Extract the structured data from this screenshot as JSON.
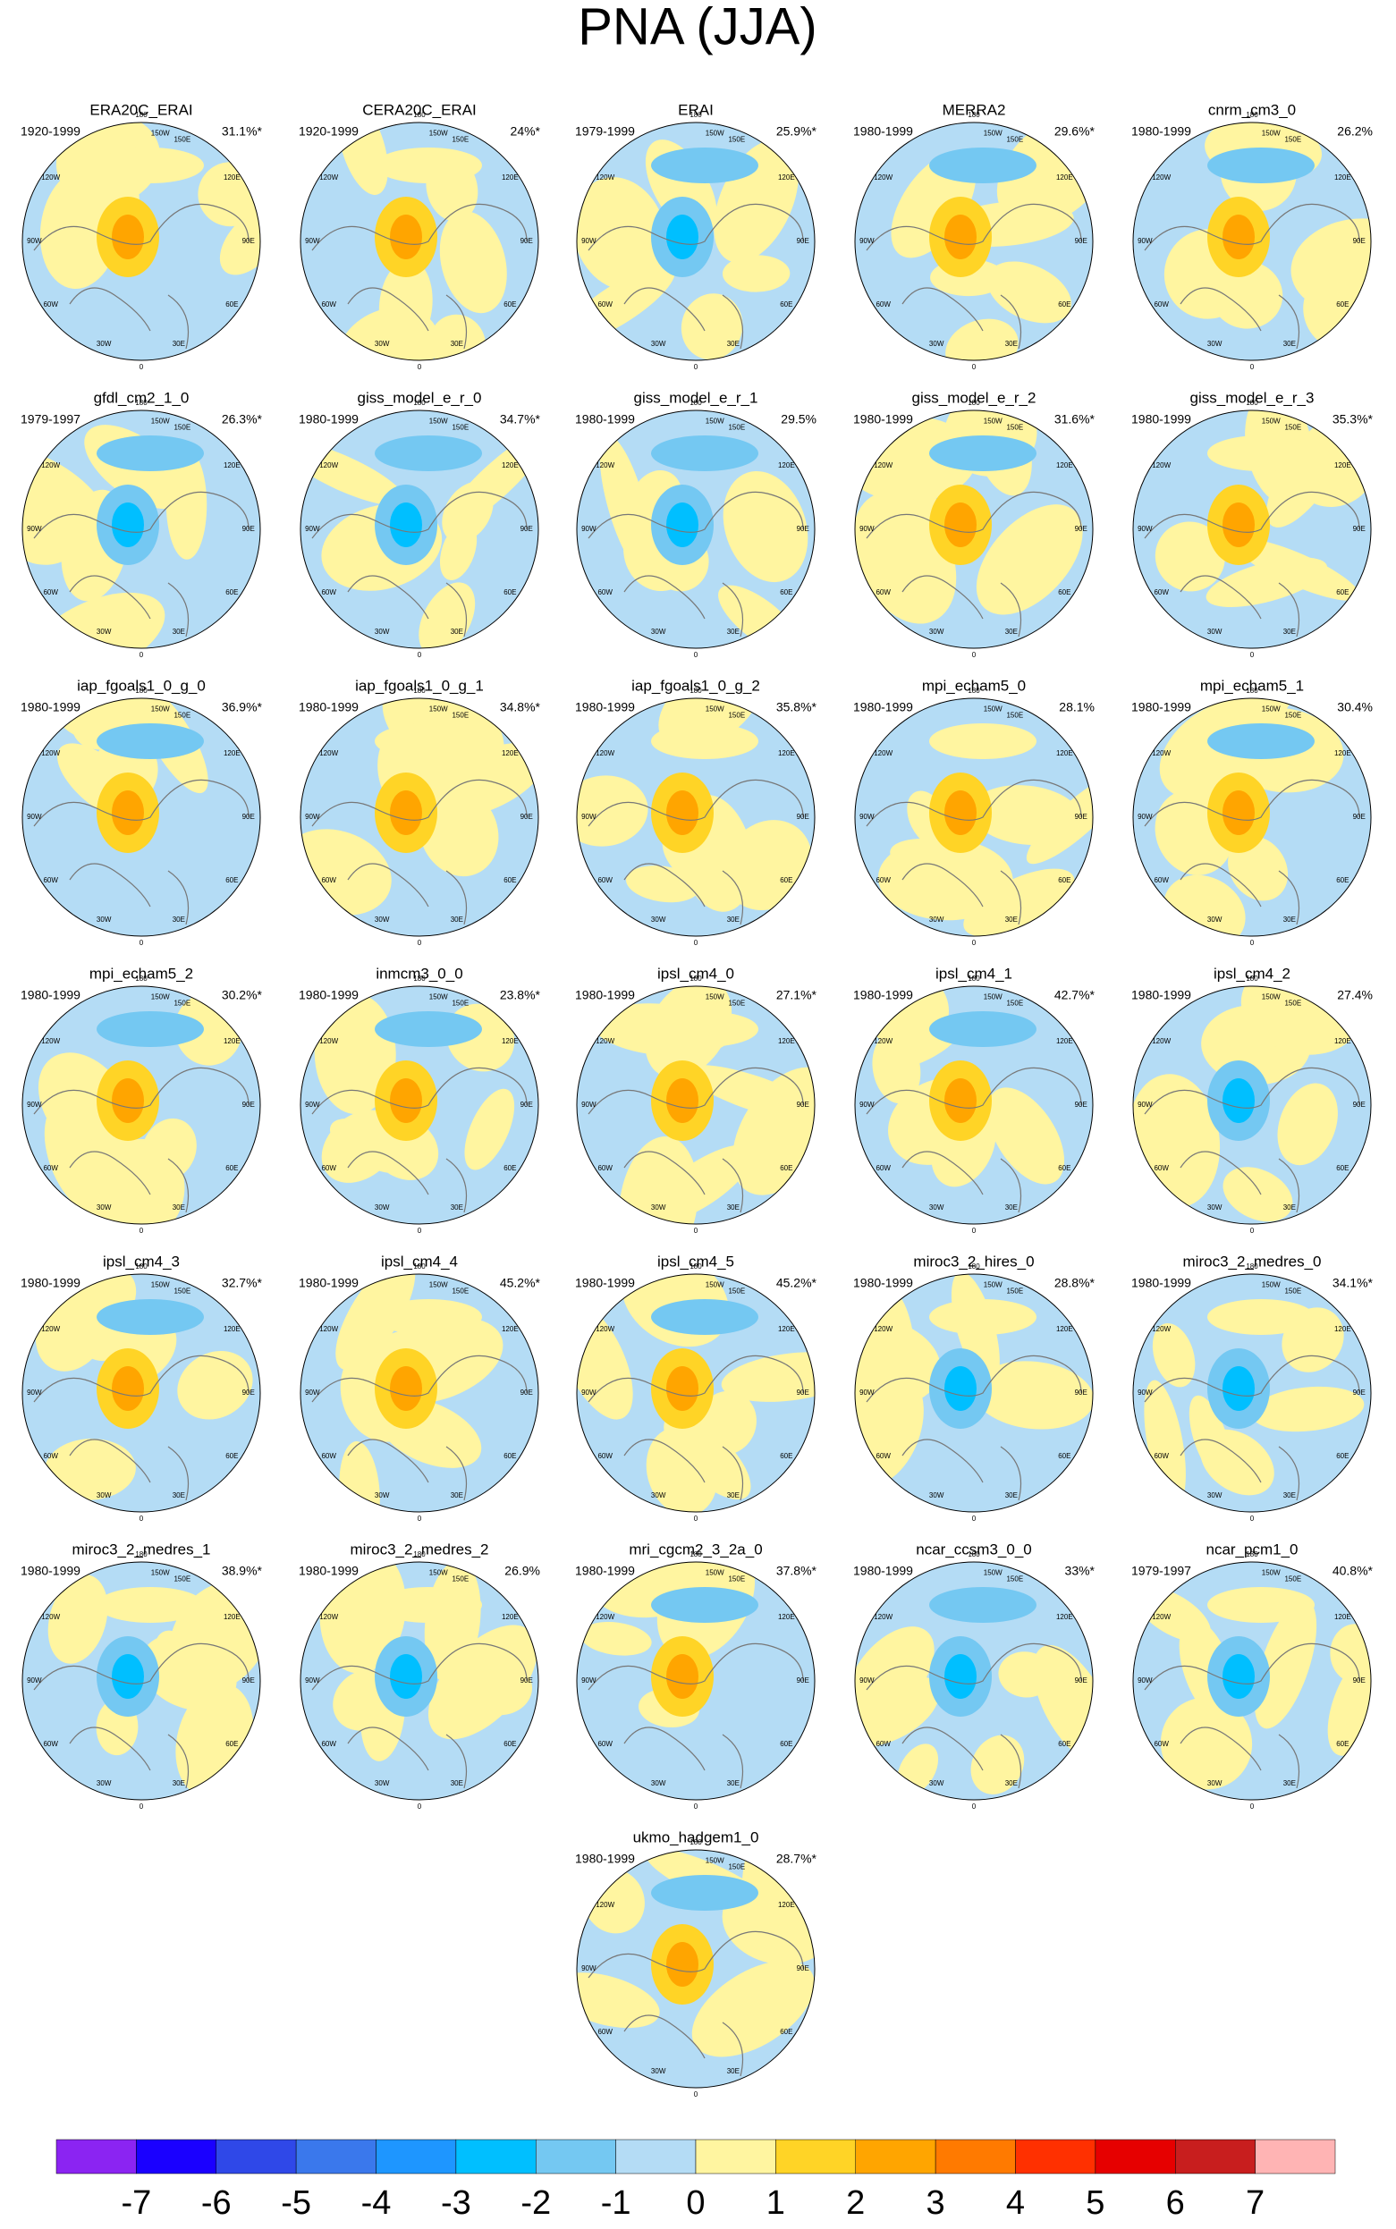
{
  "title": "PNA (JJA)",
  "longitude_labels": [
    "180",
    "150W",
    "150E",
    "120W",
    "120E",
    "90W",
    "90E",
    "60W",
    "60E",
    "30W",
    "30E",
    "0"
  ],
  "panels": [
    {
      "title": "ERA20C_ERAI",
      "period": "1920-1999",
      "percent": "31.1%*"
    },
    {
      "title": "CERA20C_ERAI",
      "period": "1920-1999",
      "percent": "24%*"
    },
    {
      "title": "ERAI",
      "period": "1979-1999",
      "percent": "25.9%*"
    },
    {
      "title": "MERRA2",
      "period": "1980-1999",
      "percent": "29.6%*"
    },
    {
      "title": "cnrm_cm3_0",
      "period": "1980-1999",
      "percent": "26.2%"
    },
    {
      "title": "gfdl_cm2_1_0",
      "period": "1979-1997",
      "percent": "26.3%*"
    },
    {
      "title": "giss_model_e_r_0",
      "period": "1980-1999",
      "percent": "34.7%*"
    },
    {
      "title": "giss_model_e_r_1",
      "period": "1980-1999",
      "percent": "29.5%"
    },
    {
      "title": "giss_model_e_r_2",
      "period": "1980-1999",
      "percent": "31.6%*"
    },
    {
      "title": "giss_model_e_r_3",
      "period": "1980-1999",
      "percent": "35.3%*"
    },
    {
      "title": "iap_fgoals1_0_g_0",
      "period": "1980-1999",
      "percent": "36.9%*"
    },
    {
      "title": "iap_fgoals1_0_g_1",
      "period": "1980-1999",
      "percent": "34.8%*"
    },
    {
      "title": "iap_fgoals1_0_g_2",
      "period": "1980-1999",
      "percent": "35.8%*"
    },
    {
      "title": "mpi_echam5_0",
      "period": "1980-1999",
      "percent": "28.1%"
    },
    {
      "title": "mpi_echam5_1",
      "period": "1980-1999",
      "percent": "30.4%"
    },
    {
      "title": "mpi_echam5_2",
      "period": "1980-1999",
      "percent": "30.2%*"
    },
    {
      "title": "inmcm3_0_0",
      "period": "1980-1999",
      "percent": "23.8%*"
    },
    {
      "title": "ipsl_cm4_0",
      "period": "1980-1999",
      "percent": "27.1%*"
    },
    {
      "title": "ipsl_cm4_1",
      "period": "1980-1999",
      "percent": "42.7%*"
    },
    {
      "title": "ipsl_cm4_2",
      "period": "1980-1999",
      "percent": "27.4%"
    },
    {
      "title": "ipsl_cm4_3",
      "period": "1980-1999",
      "percent": "32.7%*"
    },
    {
      "title": "ipsl_cm4_4",
      "period": "1980-1999",
      "percent": "45.2%*"
    },
    {
      "title": "ipsl_cm4_5",
      "period": "1980-1999",
      "percent": "45.2%*"
    },
    {
      "title": "miroc3_2_hires_0",
      "period": "1980-1999",
      "percent": "28.8%*"
    },
    {
      "title": "miroc3_2_medres_0",
      "period": "1980-1999",
      "percent": "34.1%*"
    },
    {
      "title": "miroc3_2_medres_1",
      "period": "1980-1999",
      "percent": "38.9%*"
    },
    {
      "title": "miroc3_2_medres_2",
      "period": "1980-1999",
      "percent": "26.9%"
    },
    {
      "title": "mri_cgcm2_3_2a_0",
      "period": "1980-1999",
      "percent": "37.8%*"
    },
    {
      "title": "ncar_ccsm3_0_0",
      "period": "1980-1999",
      "percent": "33%*"
    },
    {
      "title": "ncar_pcm1_0",
      "period": "1979-1997",
      "percent": "40.8%*"
    },
    {
      "title": "ukmo_hadgem1_0",
      "period": "1980-1999",
      "percent": "28.7%*"
    }
  ],
  "colorbar": {
    "colors": [
      "#8b24f2",
      "#1a00ff",
      "#2f48e8",
      "#3a78ec",
      "#1e96ff",
      "#00bfff",
      "#74c8f2",
      "#b4dcf5",
      "#fff5a0",
      "#ffd426",
      "#ffa500",
      "#ff7a00",
      "#ff3000",
      "#e60000",
      "#c81e1e",
      "#ffb4b4"
    ],
    "labels": [
      -7,
      -6,
      -5,
      -4,
      -3,
      -2,
      -1,
      0,
      1,
      2,
      3,
      4,
      5,
      6,
      7
    ]
  }
}
